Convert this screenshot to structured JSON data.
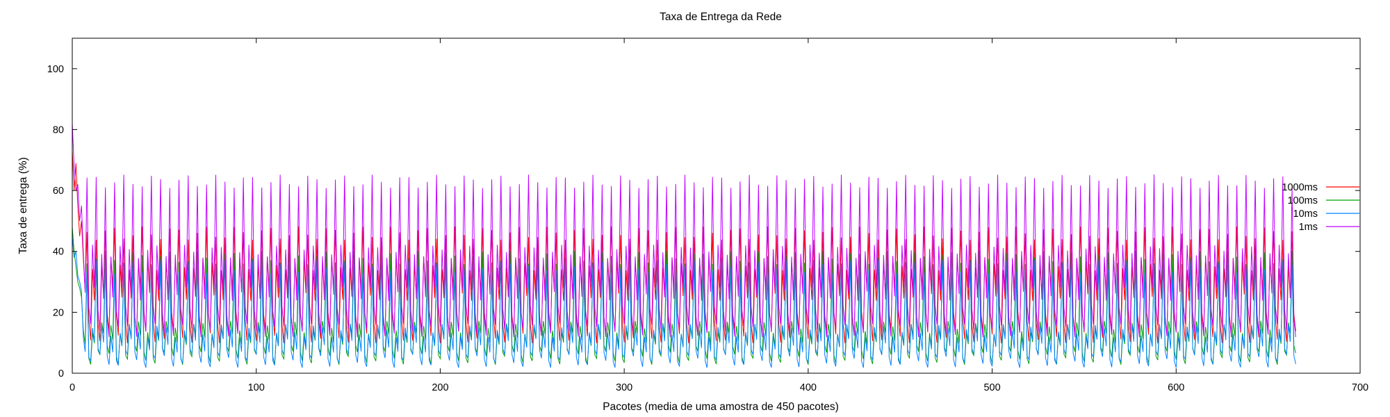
{
  "chart_data": {
    "type": "line",
    "title": "Taxa de Entrega da Rede",
    "xlabel": "Pacotes (media de uma amostra de 450 pacotes)",
    "ylabel": "Taxa de entrega (%)",
    "xlim": [
      0,
      700
    ],
    "ylim": [
      0,
      110
    ],
    "x_ticks": [
      0,
      100,
      200,
      300,
      400,
      500,
      600,
      700
    ],
    "y_ticks": [
      0,
      20,
      40,
      60,
      80,
      100
    ],
    "x_tick_labels": [
      "0",
      "100",
      "200",
      "300",
      "400",
      "500",
      "600",
      "700"
    ],
    "y_tick_labels": [
      "0",
      "20",
      "40",
      "60",
      "80",
      "100"
    ],
    "grid": false,
    "legend_position": "right",
    "x_range_of_data": [
      0,
      665
    ],
    "series": [
      {
        "name": "1000ms",
        "color": "#ff0000",
        "period": 5,
        "pattern": [
          12,
          36,
          26,
          46,
          18
        ],
        "initial": [
          73,
          60,
          69,
          55,
          45,
          50
        ]
      },
      {
        "name": "100ms",
        "color": "#00a000",
        "period": 5,
        "pattern": [
          5,
          15,
          11,
          38,
          7
        ],
        "initial": [
          48,
          40,
          35,
          30,
          28,
          25
        ]
      },
      {
        "name": "10ms",
        "color": "#0080ff",
        "period": 5,
        "pattern": [
          4,
          14,
          9,
          35,
          6
        ],
        "initial": [
          45,
          38,
          40,
          32,
          30,
          27
        ]
      },
      {
        "name": "1ms",
        "color": "#c000ff",
        "period": 5,
        "pattern": [
          14,
          40,
          26,
          63,
          20
        ],
        "initial": [
          82,
          68,
          60,
          62,
          50,
          55
        ]
      }
    ]
  }
}
